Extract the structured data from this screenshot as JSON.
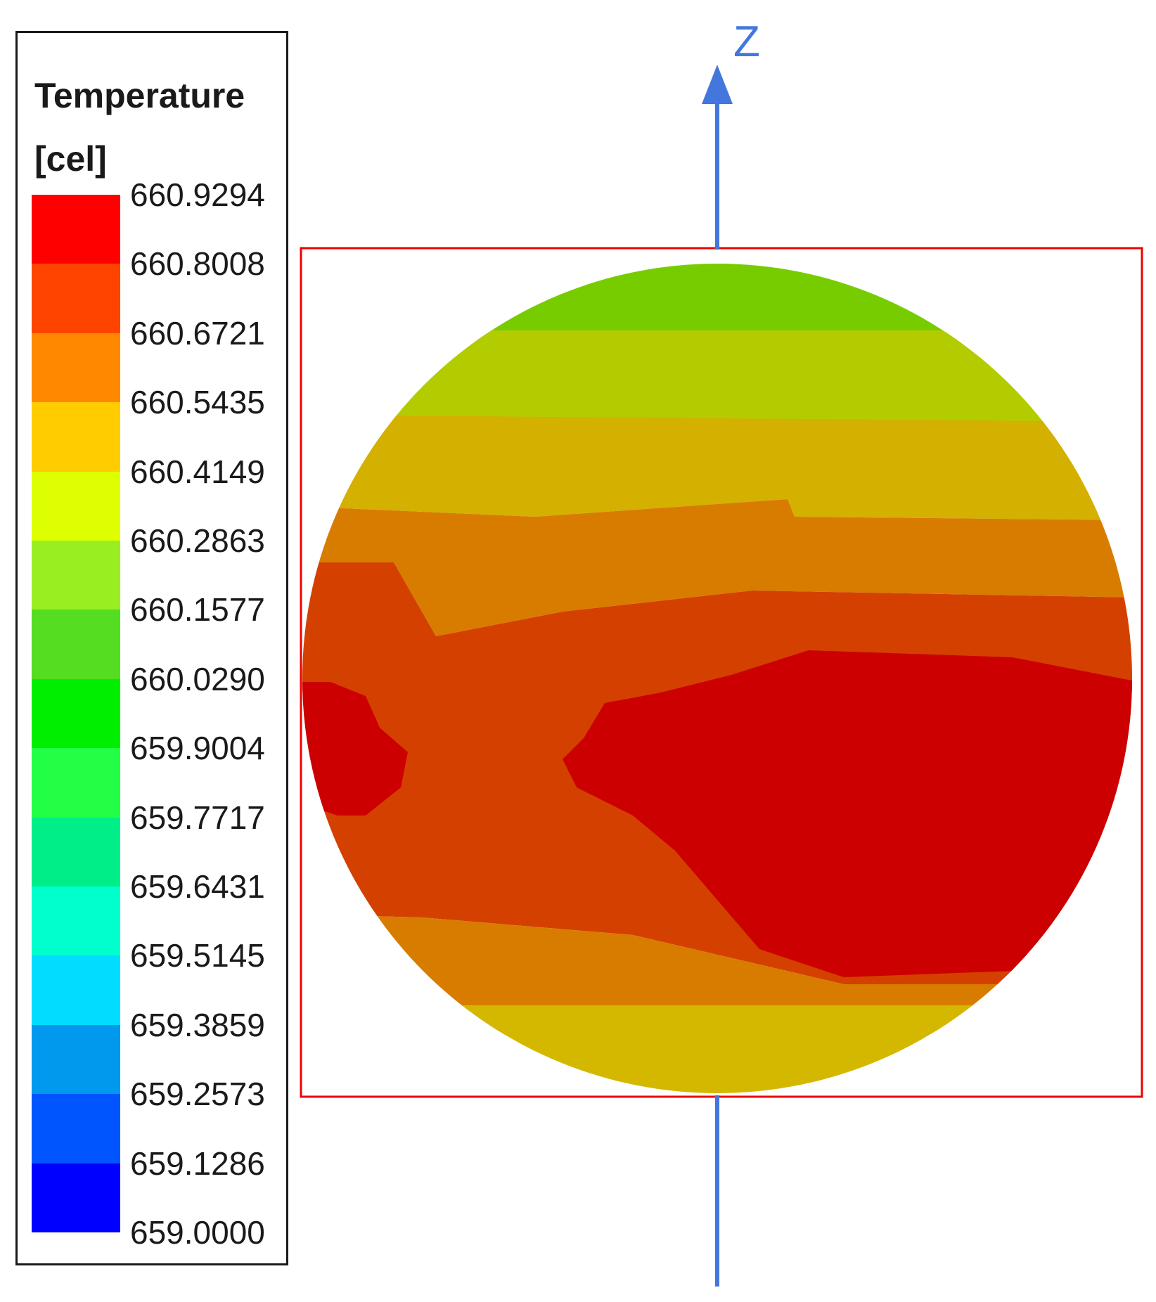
{
  "legend": {
    "title_line1": "Temperature",
    "title_line2": "[cel]",
    "ticks": [
      "660.9294",
      "660.8008",
      "660.6721",
      "660.5435",
      "660.4149",
      "660.2863",
      "660.1577",
      "660.0290",
      "659.9004",
      "659.7717",
      "659.6431",
      "659.5145",
      "659.3859",
      "659.2573",
      "659.1286",
      "659.0000"
    ],
    "band_colors_top_to_bottom": [
      "#ff0000",
      "#ff4400",
      "#ff8800",
      "#ffcc00",
      "#ddff00",
      "#99ee22",
      "#55dd22",
      "#00ee00",
      "#22ff44",
      "#00ee88",
      "#00ffcc",
      "#00ddff",
      "#0099ee",
      "#0055ff",
      "#0000ff"
    ]
  },
  "axis": {
    "label": "Z",
    "color": "#4477dd"
  },
  "bounding_box_color": "#ee0000",
  "sphere_colors": {
    "top": "#77cc00",
    "upper": "#b3cc00",
    "mid_upper": "#d4b000",
    "middle": "#d87c00",
    "lower_middle": "#d44000",
    "hot": "#cc0000",
    "bottom": "#d4b800"
  }
}
